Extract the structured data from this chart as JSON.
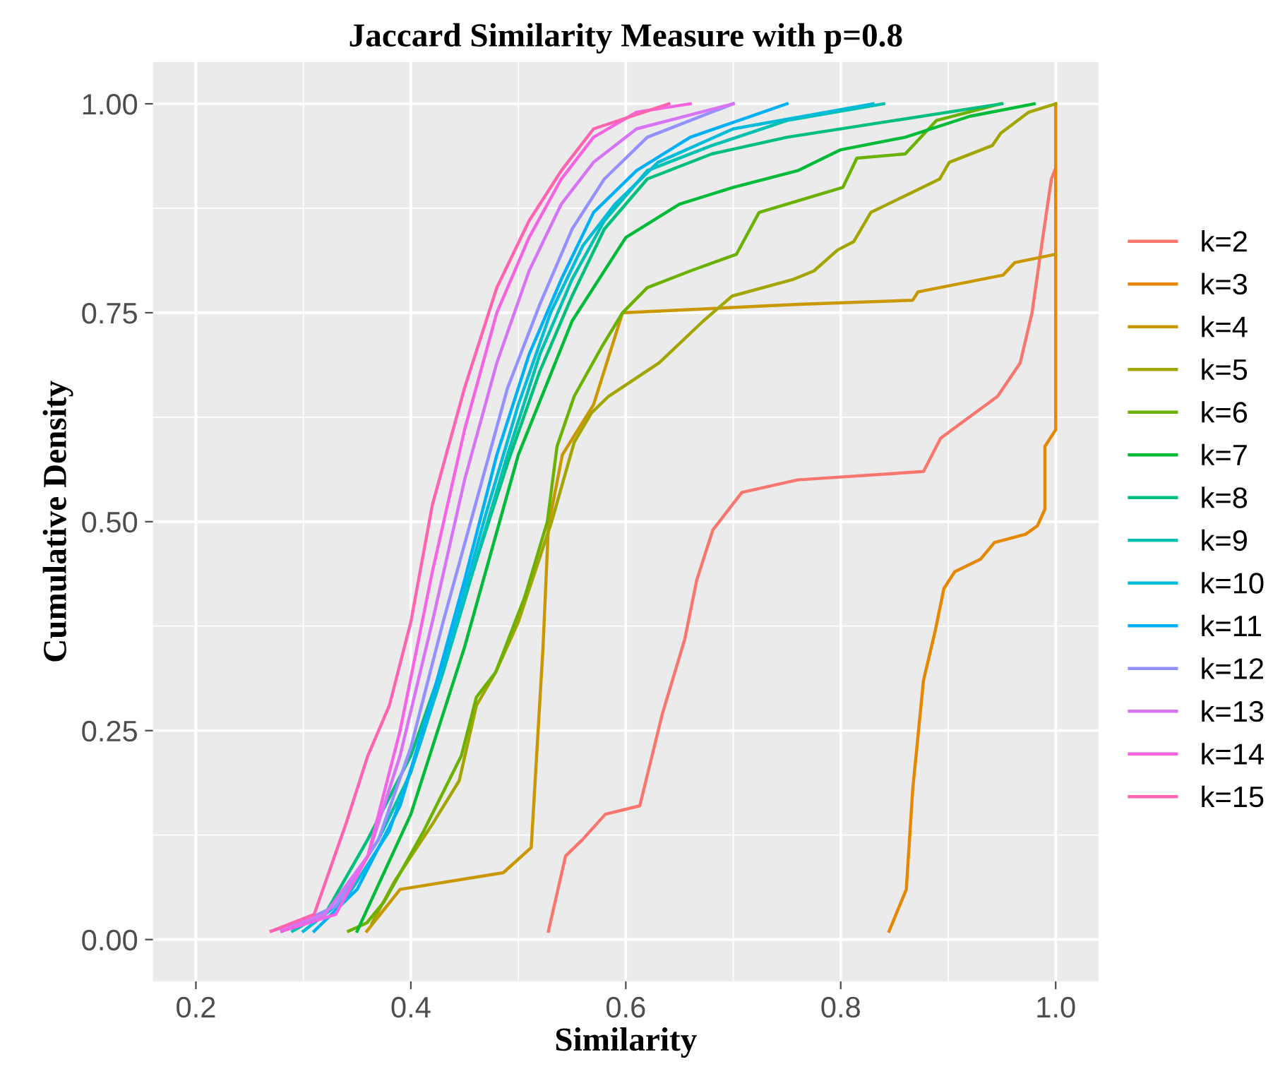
{
  "chart_data": {
    "type": "line",
    "title": "Jaccard Similarity Measure with p=0.8",
    "xlabel": "Similarity",
    "ylabel": "Cumulative Density",
    "xlim": [
      0.16,
      1.04
    ],
    "ylim": [
      -0.05,
      1.05
    ],
    "xticks": [
      0.2,
      0.4,
      0.6,
      0.8,
      {
        "value": 1,
        "label": "1.0"
      }
    ],
    "yticks": [
      {
        "value": 0,
        "label": "0.00"
      },
      {
        "value": 0.25,
        "label": "0.25"
      },
      {
        "value": 0.5,
        "label": "0.50"
      },
      {
        "value": 0.75,
        "label": "0.75"
      },
      {
        "value": 1,
        "label": "1.00"
      }
    ],
    "grid": true,
    "legend": "right",
    "series": [
      {
        "name": "k=2",
        "color": "#f8766d",
        "x": [
          0.528,
          0.544,
          0.56,
          0.581,
          0.613,
          0.634,
          0.655,
          0.666,
          0.681,
          0.708,
          0.76,
          0.877,
          0.893,
          0.946,
          0.967,
          0.978,
          0.988,
          0.996,
          0.999
        ],
        "values": [
          0.01,
          0.1,
          0.12,
          0.15,
          0.16,
          0.27,
          0.36,
          0.43,
          0.49,
          0.535,
          0.55,
          0.56,
          0.6,
          0.65,
          0.69,
          0.75,
          0.84,
          0.91,
          0.92
        ]
      },
      {
        "name": "k=3",
        "color": "#e58700",
        "x": [
          0.845,
          0.861,
          0.867,
          0.877,
          0.888,
          0.896,
          0.906,
          0.93,
          0.943,
          0.972,
          0.983,
          0.99,
          0.99,
          1.0,
          1.0
        ],
        "values": [
          0.01,
          0.06,
          0.18,
          0.31,
          0.37,
          0.42,
          0.44,
          0.455,
          0.475,
          0.485,
          0.495,
          0.515,
          0.59,
          0.61,
          1.0
        ]
      },
      {
        "name": "k=4",
        "color": "#c99800",
        "x": [
          0.359,
          0.39,
          0.486,
          0.512,
          0.523,
          0.528,
          0.541,
          0.57,
          0.597,
          0.761,
          0.867,
          0.872,
          0.951,
          0.962,
          1.0
        ],
        "values": [
          0.01,
          0.06,
          0.08,
          0.11,
          0.35,
          0.495,
          0.58,
          0.64,
          0.75,
          0.76,
          0.765,
          0.775,
          0.795,
          0.81,
          0.82
        ]
      },
      {
        "name": "k=5",
        "color": "#a3a500",
        "x": [
          0.364,
          0.385,
          0.421,
          0.445,
          0.461,
          0.479,
          0.5,
          0.531,
          0.552,
          0.568,
          0.584,
          0.631,
          0.672,
          0.699,
          0.756,
          0.775,
          0.797,
          0.812,
          0.828,
          0.86,
          0.892,
          0.901,
          0.941,
          0.949,
          0.975,
          1.0
        ],
        "values": [
          0.02,
          0.07,
          0.14,
          0.19,
          0.28,
          0.32,
          0.38,
          0.5,
          0.595,
          0.63,
          0.65,
          0.69,
          0.74,
          0.77,
          0.79,
          0.8,
          0.825,
          0.835,
          0.87,
          0.89,
          0.91,
          0.93,
          0.95,
          0.965,
          0.99,
          1.0
        ]
      },
      {
        "name": "k=6",
        "color": "#6bb100",
        "x": [
          0.342,
          0.359,
          0.375,
          0.412,
          0.447,
          0.461,
          0.479,
          0.506,
          0.527,
          0.536,
          0.552,
          0.578,
          0.597,
          0.62,
          0.66,
          0.703,
          0.724,
          0.802,
          0.815,
          0.86,
          0.889,
          0.949
        ],
        "values": [
          0.01,
          0.02,
          0.045,
          0.13,
          0.22,
          0.29,
          0.32,
          0.41,
          0.5,
          0.59,
          0.65,
          0.71,
          0.75,
          0.78,
          0.8,
          0.82,
          0.87,
          0.9,
          0.935,
          0.94,
          0.98,
          1.0
        ]
      },
      {
        "name": "k=7",
        "color": "#00ba38",
        "x": [
          0.35,
          0.4,
          0.45,
          0.5,
          0.55,
          0.6,
          0.65,
          0.7,
          0.76,
          0.8,
          0.86,
          0.92,
          0.98
        ],
        "values": [
          0.01,
          0.15,
          0.35,
          0.58,
          0.74,
          0.84,
          0.88,
          0.9,
          0.92,
          0.945,
          0.96,
          0.985,
          1.0
        ]
      },
      {
        "name": "k=8",
        "color": "#00bf7d",
        "x": [
          0.28,
          0.32,
          0.36,
          0.4,
          0.43,
          0.46,
          0.49,
          0.52,
          0.55,
          0.58,
          0.62,
          0.68,
          0.75,
          0.85,
          0.95
        ],
        "values": [
          0.01,
          0.03,
          0.12,
          0.22,
          0.33,
          0.45,
          0.57,
          0.68,
          0.77,
          0.85,
          0.91,
          0.94,
          0.96,
          0.98,
          1.0
        ]
      },
      {
        "name": "k=9",
        "color": "#00c0af",
        "x": [
          0.29,
          0.33,
          0.37,
          0.4,
          0.43,
          0.46,
          0.49,
          0.52,
          0.55,
          0.58,
          0.62,
          0.68,
          0.75,
          0.84
        ],
        "values": [
          0.01,
          0.04,
          0.12,
          0.2,
          0.32,
          0.45,
          0.58,
          0.7,
          0.79,
          0.86,
          0.92,
          0.95,
          0.98,
          1.0
        ]
      },
      {
        "name": "k=10",
        "color": "#00bcd8",
        "x": [
          0.3,
          0.34,
          0.38,
          0.41,
          0.44,
          0.47,
          0.5,
          0.53,
          0.56,
          0.59,
          0.63,
          0.7,
          0.83
        ],
        "values": [
          0.01,
          0.05,
          0.13,
          0.24,
          0.37,
          0.51,
          0.64,
          0.75,
          0.83,
          0.88,
          0.93,
          0.97,
          1.0
        ]
      },
      {
        "name": "k=11",
        "color": "#00b0f6",
        "x": [
          0.31,
          0.35,
          0.39,
          0.42,
          0.45,
          0.48,
          0.51,
          0.54,
          0.57,
          0.61,
          0.66,
          0.75
        ],
        "values": [
          0.01,
          0.06,
          0.16,
          0.29,
          0.43,
          0.58,
          0.7,
          0.79,
          0.87,
          0.92,
          0.96,
          1.0
        ]
      },
      {
        "name": "k=12",
        "color": "#9590ff",
        "x": [
          0.28,
          0.33,
          0.37,
          0.4,
          0.43,
          0.46,
          0.49,
          0.52,
          0.55,
          0.58,
          0.62,
          0.7
        ],
        "values": [
          0.01,
          0.04,
          0.12,
          0.23,
          0.38,
          0.52,
          0.66,
          0.76,
          0.85,
          0.91,
          0.96,
          1.0
        ]
      },
      {
        "name": "k=13",
        "color": "#d774f5",
        "x": [
          0.27,
          0.32,
          0.36,
          0.39,
          0.42,
          0.45,
          0.48,
          0.51,
          0.54,
          0.57,
          0.61,
          0.7
        ],
        "values": [
          0.01,
          0.03,
          0.1,
          0.22,
          0.38,
          0.55,
          0.69,
          0.8,
          0.88,
          0.93,
          0.97,
          1.0
        ]
      },
      {
        "name": "k=14",
        "color": "#f564e3",
        "x": [
          0.28,
          0.33,
          0.36,
          0.39,
          0.42,
          0.45,
          0.48,
          0.51,
          0.54,
          0.57,
          0.61,
          0.66
        ],
        "values": [
          0.01,
          0.03,
          0.1,
          0.25,
          0.44,
          0.61,
          0.75,
          0.84,
          0.91,
          0.96,
          0.99,
          1.0
        ]
      },
      {
        "name": "k=15",
        "color": "#ff64b0",
        "x": [
          0.27,
          0.31,
          0.34,
          0.36,
          0.38,
          0.4,
          0.42,
          0.45,
          0.48,
          0.51,
          0.54,
          0.57,
          0.64
        ],
        "values": [
          0.01,
          0.03,
          0.14,
          0.22,
          0.28,
          0.38,
          0.52,
          0.66,
          0.78,
          0.86,
          0.92,
          0.97,
          1.0
        ]
      }
    ]
  }
}
